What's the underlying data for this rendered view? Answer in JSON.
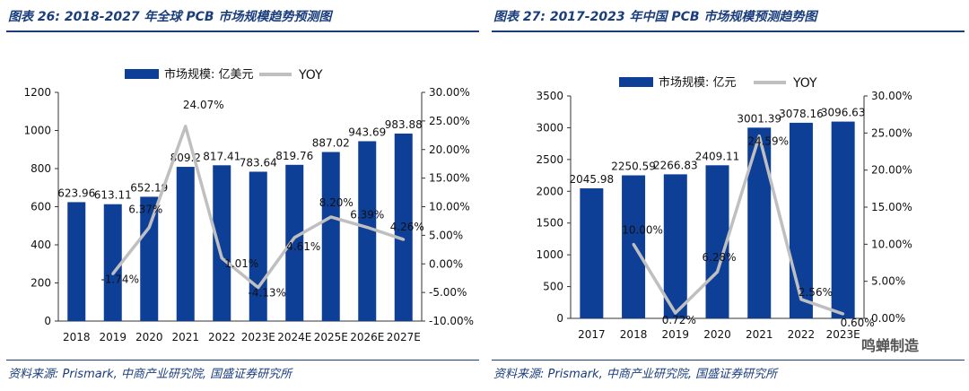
{
  "watermark": "鸣蝉制造",
  "chart_data": [
    {
      "type": "bar",
      "title": "图表 26: 2018-2027 年全球 PCB 市场规模趋势预测图",
      "source": "资料来源: Prismark, 中商产业研究院, 国盛证券研究所",
      "categories": [
        "2018",
        "2019",
        "2020",
        "2021",
        "2022",
        "2023E",
        "2024E",
        "2025E",
        "2026E",
        "2027E"
      ],
      "series": [
        {
          "name": "市场规模: 亿美元",
          "type": "bar",
          "axis": "left",
          "color": "#0e3f97",
          "values": [
            623.96,
            613.11,
            652.19,
            809.2,
            817.41,
            783.64,
            819.76,
            887.02,
            943.69,
            983.88
          ],
          "labels": [
            "623.96",
            "613.11",
            "652.19",
            "809.2",
            "817.41",
            "783.64",
            "819.76",
            "887.02",
            "943.69",
            "983.88"
          ]
        },
        {
          "name": "YOY",
          "type": "line",
          "axis": "right",
          "color": "#bfbfbf",
          "values": [
            null,
            -1.74,
            6.37,
            24.07,
            1.01,
            -4.13,
            4.61,
            8.2,
            6.39,
            4.26
          ],
          "labels": [
            "",
            "-1.74%",
            "6.37%",
            "24.07%",
            "1.01%",
            "-4.13%",
            "4.61%",
            "8.20%",
            "6.39%",
            "4.26%"
          ]
        }
      ],
      "y_left": {
        "min": 0,
        "max": 1200,
        "step": 200,
        "ticks": [
          "0",
          "200",
          "400",
          "600",
          "800",
          "1000",
          "1200"
        ]
      },
      "y_right": {
        "min": -10,
        "max": 30,
        "step": 5,
        "ticks": [
          "-10.00%",
          "-5.00%",
          "0.00%",
          "5.00%",
          "10.00%",
          "15.00%",
          "20.00%",
          "25.00%",
          "30.00%"
        ]
      },
      "legend": {
        "position": "top",
        "bar_label": "市场规模: 亿美元",
        "line_label": "YOY"
      }
    },
    {
      "type": "bar",
      "title": "图表 27: 2017-2023 年中国 PCB 市场规模预测趋势图",
      "source": "资料来源: Prismark, 中商产业研究院, 国盛证券研究所",
      "categories": [
        "2017",
        "2018",
        "2019",
        "2020",
        "2021",
        "2022",
        "2023E"
      ],
      "series": [
        {
          "name": "市场规模: 亿元",
          "type": "bar",
          "axis": "left",
          "color": "#0e3f97",
          "values": [
            2045.98,
            2250.59,
            2266.83,
            2409.11,
            3001.39,
            3078.16,
            3096.63
          ],
          "labels": [
            "2045.98",
            "2250.59",
            "2266.83",
            "2409.11",
            "3001.39",
            "3078.16",
            "3096.63"
          ]
        },
        {
          "name": "YOY",
          "type": "line",
          "axis": "right",
          "color": "#bfbfbf",
          "values": [
            null,
            10.0,
            0.72,
            6.28,
            24.59,
            2.56,
            0.6
          ],
          "labels": [
            "",
            "10.00%",
            "0.72%",
            "6.28%",
            "24.59%",
            "2.56%",
            "0.60%"
          ]
        }
      ],
      "y_left": {
        "min": 0,
        "max": 3500,
        "step": 500,
        "ticks": [
          "0",
          "500",
          "1000",
          "1500",
          "2000",
          "2500",
          "3000",
          "3500"
        ]
      },
      "y_right": {
        "min": 0,
        "max": 30,
        "step": 5,
        "ticks": [
          "0.00%",
          "5.00%",
          "10.00%",
          "15.00%",
          "20.00%",
          "25.00%",
          "30.00%"
        ]
      },
      "legend": {
        "position": "top",
        "bar_label": "市场规模: 亿元",
        "line_label": "YOY"
      }
    }
  ]
}
